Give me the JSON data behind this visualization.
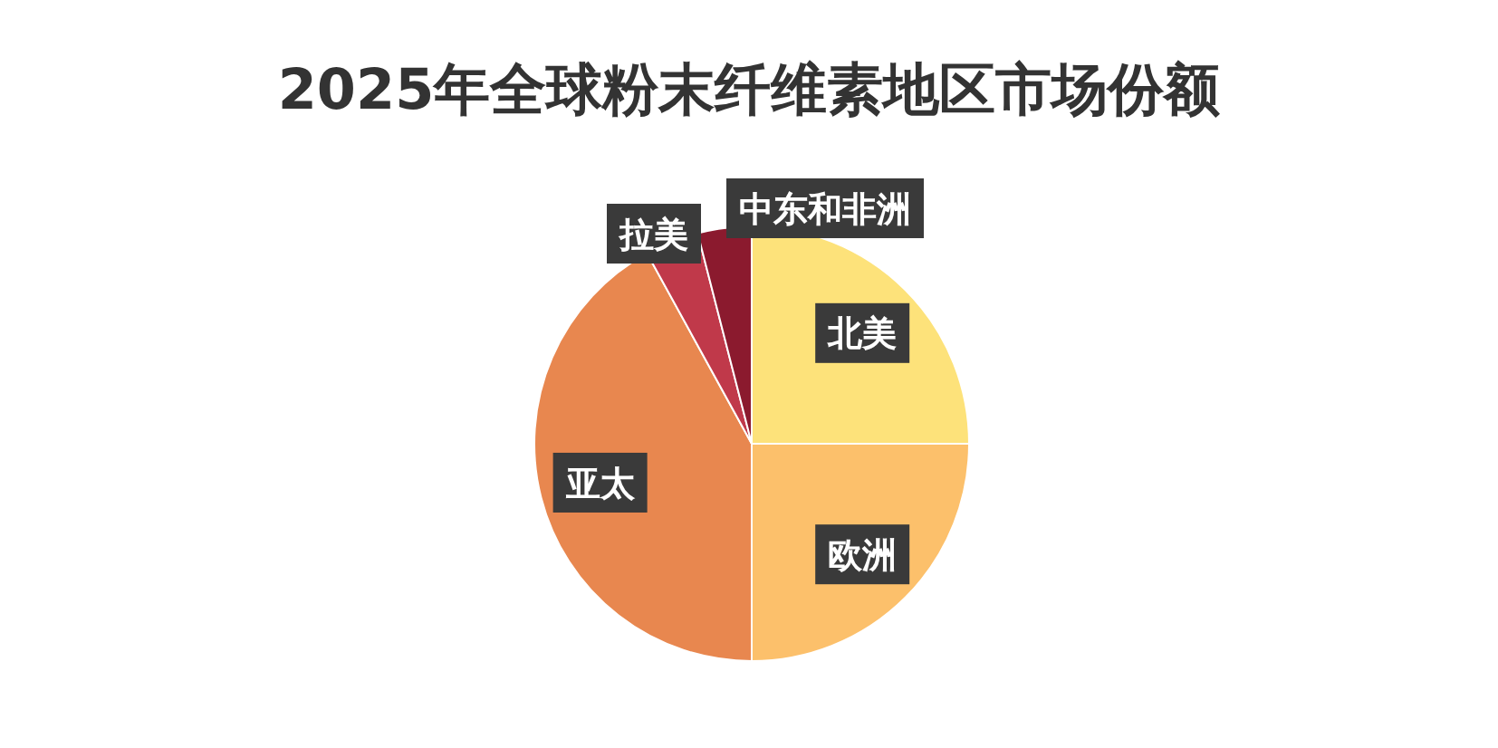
{
  "chart_data": {
    "type": "pie",
    "title": "2025年全球粉末纤维素地区市场份额",
    "categories": [
      "北美",
      "欧洲",
      "亚太",
      "拉美",
      "中东和非洲"
    ],
    "values": [
      25,
      25,
      42,
      4,
      4
    ],
    "colors": [
      "#fde27a",
      "#fcc06b",
      "#e8874f",
      "#c0394a",
      "#8b1a2e"
    ]
  }
}
